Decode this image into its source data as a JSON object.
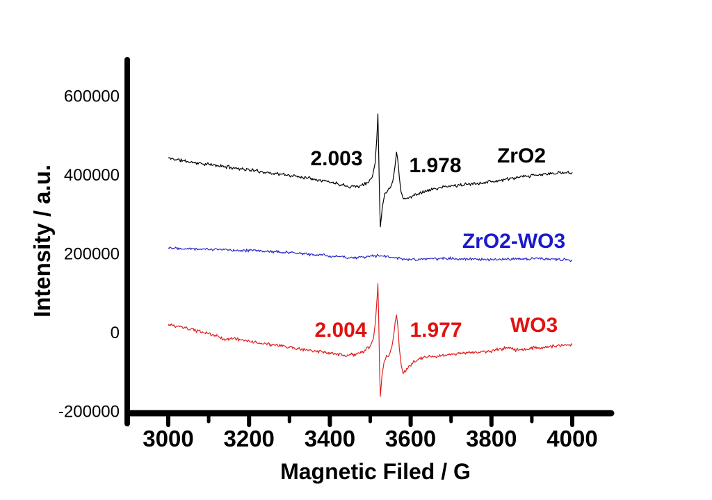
{
  "page": {
    "background": "#ffffff"
  },
  "axes": {
    "x_title": "Magnetic Filed / G",
    "y_title": "Intensity / a.u."
  },
  "annotations": [
    {
      "text": "2.003",
      "color": "#000000"
    },
    {
      "text": "1.978",
      "color": "#000000"
    },
    {
      "text": "ZrO2",
      "color": "#000000"
    },
    {
      "text": "ZrO2-WO3",
      "color": "#1a1acd"
    },
    {
      "text": "2.004",
      "color": "#e01212"
    },
    {
      "text": "1.977",
      "color": "#e01212"
    },
    {
      "text": "WO3",
      "color": "#e01212"
    }
  ],
  "chart_data": {
    "type": "line",
    "title": "",
    "xlabel": "Magnetic Filed / G",
    "ylabel": "Intensity / a.u.",
    "xlim": [
      2898,
      4105
    ],
    "ylim": [
      -204000,
      692000
    ],
    "grid": false,
    "legend": "inline-labels",
    "x_ticks_major": [
      3000,
      3200,
      3400,
      3600,
      3800,
      4000
    ],
    "x_ticks_minor": [
      3100,
      3300,
      3500,
      3700,
      3900
    ],
    "x_tick_labels": [
      "3000",
      "3200",
      "3400",
      "3600",
      "3800",
      "4000"
    ],
    "y_ticks": [
      600000,
      400000,
      200000,
      0,
      -200000
    ],
    "y_tick_labels": [
      "600000",
      "400000",
      "200000",
      "0",
      "-200000"
    ],
    "series": [
      {
        "name": "ZrO2",
        "color": "#000000",
        "noise": 5200,
        "seed": 11,
        "g_values": [
          2.003,
          1.978
        ],
        "peak_fields_G": [
          3518,
          3566
        ],
        "anchors": [
          [
            3000,
            443000
          ],
          [
            3060,
            432000
          ],
          [
            3120,
            424000
          ],
          [
            3180,
            416000
          ],
          [
            3240,
            407000
          ],
          [
            3300,
            399000
          ],
          [
            3360,
            391000
          ],
          [
            3410,
            380000
          ],
          [
            3450,
            371000
          ],
          [
            3475,
            372000
          ],
          [
            3495,
            381000
          ],
          [
            3505,
            395000
          ],
          [
            3512,
            430000
          ],
          [
            3516,
            490000
          ],
          [
            3519,
            555000
          ],
          [
            3521,
            450000
          ],
          [
            3523,
            340000
          ],
          [
            3525,
            268000
          ],
          [
            3530,
            320000
          ],
          [
            3536,
            352000
          ],
          [
            3543,
            362000
          ],
          [
            3550,
            368000
          ],
          [
            3556,
            385000
          ],
          [
            3561,
            420000
          ],
          [
            3565,
            458000
          ],
          [
            3568,
            440000
          ],
          [
            3572,
            395000
          ],
          [
            3576,
            358000
          ],
          [
            3581,
            343000
          ],
          [
            3590,
            339000
          ],
          [
            3600,
            344000
          ],
          [
            3615,
            352000
          ],
          [
            3640,
            360000
          ],
          [
            3670,
            367000
          ],
          [
            3700,
            372000
          ],
          [
            3740,
            376000
          ],
          [
            3780,
            381000
          ],
          [
            3820,
            386000
          ],
          [
            3860,
            393000
          ],
          [
            3900,
            398000
          ],
          [
            3950,
            404000
          ],
          [
            4000,
            407000
          ]
        ]
      },
      {
        "name": "ZrO2-WO3",
        "color": "#2a2ac8",
        "noise": 4500,
        "seed": 22,
        "g_values": [],
        "peak_fields_G": [],
        "anchors": [
          [
            3000,
            216000
          ],
          [
            3060,
            213000
          ],
          [
            3120,
            211000
          ],
          [
            3180,
            209000
          ],
          [
            3240,
            207000
          ],
          [
            3300,
            203000
          ],
          [
            3360,
            198000
          ],
          [
            3420,
            193000
          ],
          [
            3460,
            190000
          ],
          [
            3500,
            193000
          ],
          [
            3520,
            196000
          ],
          [
            3540,
            193000
          ],
          [
            3560,
            190000
          ],
          [
            3580,
            187000
          ],
          [
            3600,
            185000
          ],
          [
            3650,
            187000
          ],
          [
            3700,
            189000
          ],
          [
            3750,
            186000
          ],
          [
            3800,
            184000
          ],
          [
            3850,
            187000
          ],
          [
            3900,
            188000
          ],
          [
            3950,
            186000
          ],
          [
            4000,
            184000
          ]
        ]
      },
      {
        "name": "WO3",
        "color": "#e02020",
        "noise": 5200,
        "seed": 33,
        "g_values": [
          2.004,
          1.977
        ],
        "peak_fields_G": [
          3518,
          3566
        ],
        "anchors": [
          [
            3000,
            20000
          ],
          [
            3040,
            12000
          ],
          [
            3080,
            2000
          ],
          [
            3120,
            -8000
          ],
          [
            3140,
            -18000
          ],
          [
            3160,
            -14000
          ],
          [
            3200,
            -22000
          ],
          [
            3250,
            -30000
          ],
          [
            3300,
            -37000
          ],
          [
            3350,
            -45000
          ],
          [
            3400,
            -53000
          ],
          [
            3440,
            -58000
          ],
          [
            3465,
            -55000
          ],
          [
            3485,
            -47000
          ],
          [
            3500,
            -34000
          ],
          [
            3508,
            -15000
          ],
          [
            3513,
            30000
          ],
          [
            3517,
            90000
          ],
          [
            3519,
            125000
          ],
          [
            3521,
            30000
          ],
          [
            3523,
            -90000
          ],
          [
            3525,
            -162000
          ],
          [
            3529,
            -110000
          ],
          [
            3534,
            -75000
          ],
          [
            3540,
            -62000
          ],
          [
            3547,
            -56000
          ],
          [
            3553,
            -38000
          ],
          [
            3558,
            -8000
          ],
          [
            3562,
            30000
          ],
          [
            3565,
            45000
          ],
          [
            3568,
            20000
          ],
          [
            3572,
            -40000
          ],
          [
            3577,
            -85000
          ],
          [
            3581,
            -100000
          ],
          [
            3588,
            -96000
          ],
          [
            3597,
            -84000
          ],
          [
            3610,
            -72000
          ],
          [
            3630,
            -64000
          ],
          [
            3660,
            -60000
          ],
          [
            3700,
            -55000
          ],
          [
            3750,
            -51000
          ],
          [
            3800,
            -46000
          ],
          [
            3840,
            -38000
          ],
          [
            3860,
            -44000
          ],
          [
            3900,
            -40000
          ],
          [
            3950,
            -35000
          ],
          [
            4000,
            -30000
          ]
        ]
      }
    ]
  }
}
